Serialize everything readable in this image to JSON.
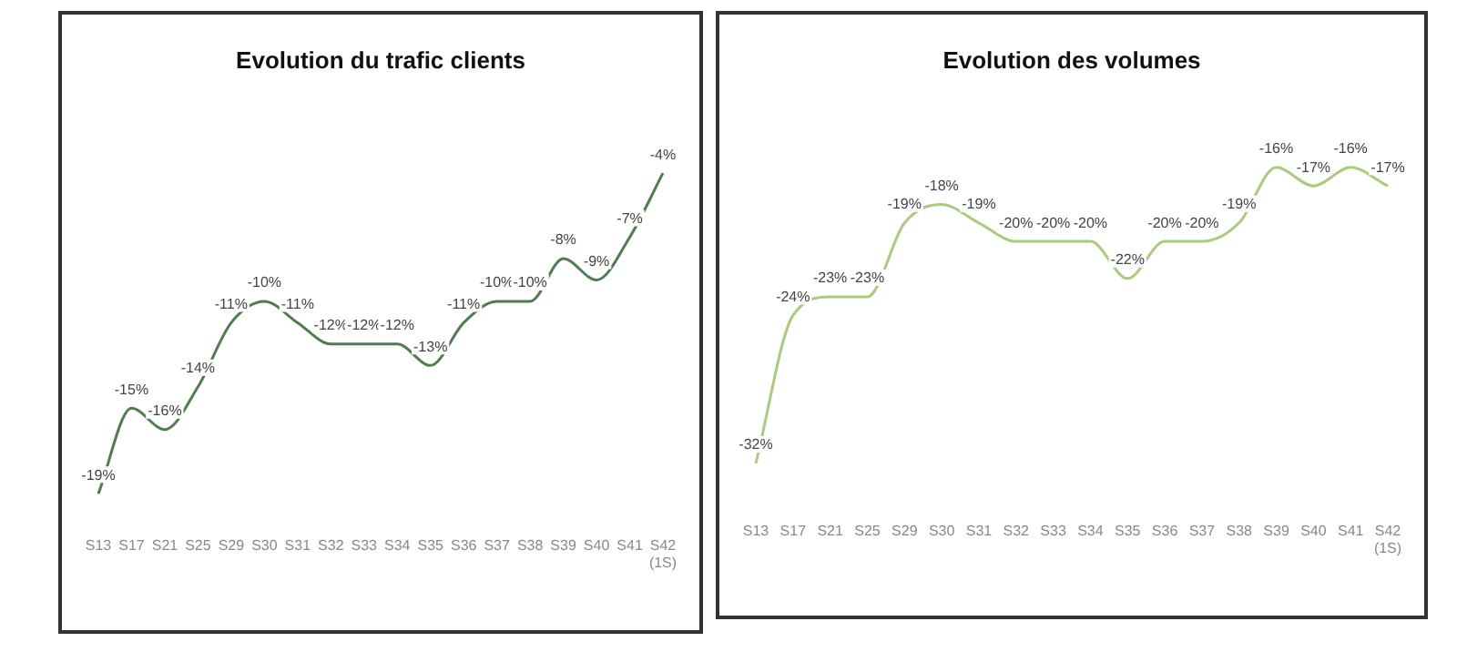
{
  "chart_data": [
    {
      "type": "line",
      "title": "Evolution du trafic clients",
      "categories": [
        "S13",
        "S17",
        "S21",
        "S25",
        "S29",
        "S30",
        "S31",
        "S32",
        "S33",
        "S34",
        "S35",
        "S36",
        "S37",
        "S38",
        "S39",
        "S40",
        "S41",
        "S42 (1S)"
      ],
      "series": [
        {
          "color": "#4e7d4e",
          "values": [
            -19,
            -15,
            -16,
            -14,
            -11,
            -10,
            -11,
            -12,
            -12,
            -12,
            -13,
            -11,
            -10,
            -10,
            -8,
            -9,
            -7,
            -4
          ],
          "value_labels": [
            "-19%",
            "-15%",
            "-16%",
            "-14%",
            "-11%",
            "-10%",
            "-11%",
            "-12%",
            "-12%",
            "-12%",
            "-13%",
            "-11%",
            "-10%",
            "-10%",
            "-8%",
            "-9%",
            "-7%",
            "-4%"
          ]
        }
      ],
      "grid": false,
      "legend": false,
      "marker": "none",
      "tick_labels": "x"
    },
    {
      "type": "line",
      "title": "Evolution des volumes",
      "categories": [
        "S13",
        "S17",
        "S21",
        "S25",
        "S29",
        "S30",
        "S31",
        "S32",
        "S33",
        "S34",
        "S35",
        "S36",
        "S37",
        "S38",
        "S39",
        "S40",
        "S41",
        "S42 (1S)"
      ],
      "series": [
        {
          "color": "#a9cc7c",
          "values": [
            -32,
            -24,
            -23,
            -23,
            -19,
            -18,
            -19,
            -20,
            -20,
            -20,
            -22,
            -20,
            -20,
            -19,
            -16,
            -17,
            -16,
            -17
          ],
          "value_labels": [
            "-32%",
            "-24%",
            "-23%",
            "-23%",
            "-19%",
            "-18%",
            "-19%",
            "-20%",
            "-20%",
            "-20%",
            "-22%",
            "-20%",
            "-20%",
            "-19%",
            "-16%",
            "-17%",
            "-16%",
            "-17%"
          ]
        }
      ],
      "grid": false,
      "legend": false,
      "marker": "none",
      "tick_labels": "x"
    }
  ]
}
